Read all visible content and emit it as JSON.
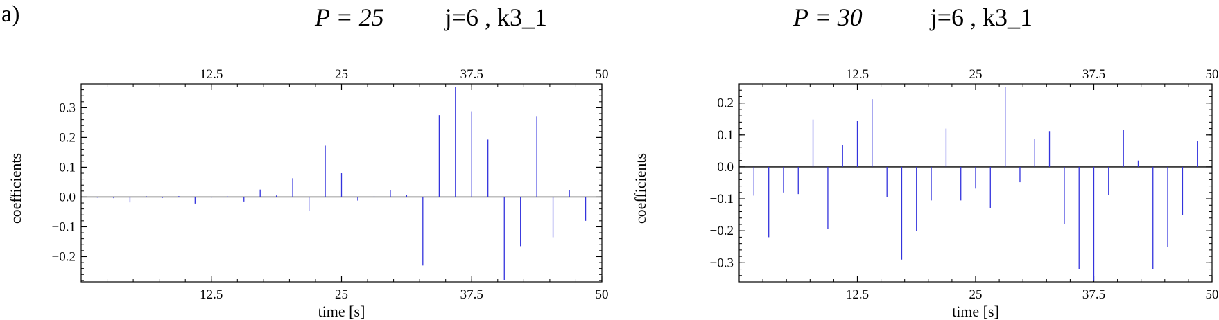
{
  "panel_label": "a)",
  "chart_data": [
    {
      "type": "stem",
      "title_p": "P = 25",
      "title_j": "j=6 , k3_1",
      "xlabel": "time [s]",
      "ylabel": "coefficients",
      "xlim": [
        0,
        50
      ],
      "ylim": [
        -0.285,
        0.38
      ],
      "xticks": [
        12.5,
        25,
        37.5,
        50
      ],
      "xtick_labels": [
        "12.5",
        "25",
        "37.5",
        "50"
      ],
      "yticks": [
        -0.2,
        -0.1,
        0.0,
        0.1,
        0.2,
        0.3
      ],
      "ytick_labels": [
        "−0.2",
        "−0.1",
        "0.0",
        "0.1",
        "0.2",
        "0.3"
      ],
      "color": "#3333dd",
      "x": [
        1.56,
        3.13,
        4.69,
        6.25,
        7.81,
        9.38,
        10.94,
        12.5,
        14.06,
        15.63,
        17.19,
        18.75,
        20.31,
        21.88,
        23.44,
        25.0,
        26.56,
        28.13,
        29.69,
        31.25,
        32.81,
        34.38,
        35.94,
        37.5,
        39.06,
        40.63,
        42.19,
        43.75,
        45.31,
        46.88,
        48.44,
        50.0
      ],
      "values": [
        -0.002,
        -0.004,
        -0.018,
        0.003,
        -0.003,
        0.003,
        -0.022,
        -0.002,
        0.002,
        -0.015,
        0.025,
        0.005,
        0.063,
        -0.047,
        0.172,
        0.08,
        -0.012,
        0.002,
        0.023,
        0.008,
        -0.23,
        0.275,
        0.37,
        0.288,
        0.193,
        -0.278,
        -0.165,
        0.27,
        -0.135,
        0.022,
        -0.08,
        0.0
      ]
    },
    {
      "type": "stem",
      "title_p": "P = 30",
      "title_j": "j=6 , k3_1",
      "xlabel": "time [s]",
      "ylabel": "coefficients",
      "xlim": [
        0,
        50
      ],
      "ylim": [
        -0.36,
        0.26
      ],
      "xticks": [
        12.5,
        25,
        37.5,
        50
      ],
      "xtick_labels": [
        "12.5",
        "25",
        "37.5",
        "50"
      ],
      "yticks": [
        -0.3,
        -0.2,
        -0.1,
        0.0,
        0.1,
        0.2
      ],
      "ytick_labels": [
        "−0.3",
        "−0.2",
        "−0.1",
        "0.0",
        "0.1",
        "0.2"
      ],
      "color": "#3333dd",
      "x": [
        1.56,
        3.13,
        4.69,
        6.25,
        7.81,
        9.38,
        10.94,
        12.5,
        14.06,
        15.63,
        17.19,
        18.75,
        20.31,
        21.88,
        23.44,
        25.0,
        26.56,
        28.13,
        29.69,
        31.25,
        32.81,
        34.38,
        35.94,
        37.5,
        39.06,
        40.63,
        42.19,
        43.75,
        45.31,
        46.88,
        48.44,
        50.0
      ],
      "values": [
        -0.09,
        -0.22,
        -0.08,
        -0.085,
        0.148,
        -0.195,
        0.068,
        0.143,
        0.212,
        -0.095,
        -0.29,
        -0.2,
        -0.105,
        0.12,
        -0.105,
        -0.068,
        -0.128,
        0.25,
        -0.048,
        0.087,
        0.112,
        -0.18,
        -0.32,
        -0.355,
        -0.088,
        0.115,
        0.02,
        -0.32,
        -0.25,
        -0.15,
        0.08,
        0.0
      ]
    }
  ]
}
